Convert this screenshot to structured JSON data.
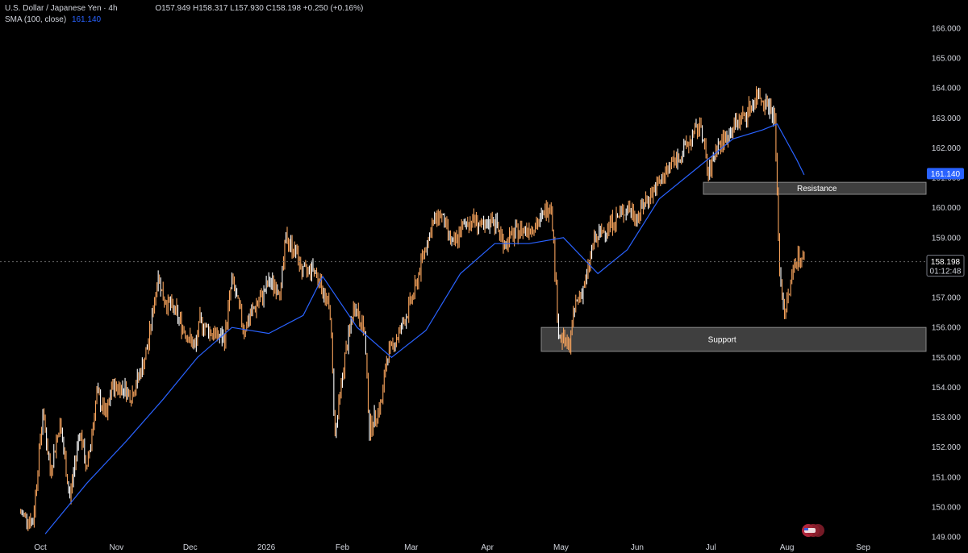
{
  "header": {
    "symbol": "U.S. Dollar / Japanese Yen · 4h",
    "ohlc": "O157.949 H158.317 L157.930 C158.198 +0.250 (+0.16%)",
    "indicator": "SMA (100, close)",
    "indicator_value": "161.140"
  },
  "colors": {
    "background": "#000000",
    "candle": "#f7a35c",
    "candle_highlight": "#ffffff",
    "sma": "#2962ff",
    "zone_fill": "#4a4a4a",
    "crosshair": "#666666"
  },
  "chart_data": {
    "type": "line",
    "y_axis": {
      "min": 149,
      "max": 166,
      "ticks": [
        149,
        150,
        151,
        152,
        153,
        154,
        155,
        156,
        157,
        158,
        159,
        160,
        161,
        162,
        163,
        164,
        165,
        166
      ],
      "tick_labels": [
        "149.000",
        "150.000",
        "151.000",
        "152.000",
        "153.000",
        "154.000",
        "155.000",
        "156.000",
        "157.000",
        "158.000",
        "159.000",
        "160.000",
        "161.000",
        "162.000",
        "163.000",
        "164.000",
        "165.000",
        "166.000"
      ]
    },
    "x_axis": {
      "labels": [
        "Oct",
        "Nov",
        "Dec",
        "2026",
        "Feb",
        "Mar",
        "Apr",
        "May",
        "Jun",
        "Jul",
        "Aug",
        "Sep"
      ]
    },
    "series": [
      {
        "name": "U.S. Dollar / Japanese Yen · 4h",
        "kind": "price",
        "x": [
          "2025-09-23",
          "2025-09-28",
          "2025-10-02",
          "2025-10-05",
          "2025-10-09",
          "2025-10-13",
          "2025-10-17",
          "2025-10-20",
          "2025-10-24",
          "2025-10-28",
          "2025-10-30",
          "2025-11-04",
          "2025-11-07",
          "2025-11-12",
          "2025-11-14",
          "2025-11-18",
          "2025-11-20",
          "2025-11-25",
          "2025-11-28",
          "2025-12-03",
          "2025-12-05",
          "2025-12-10",
          "2025-12-15",
          "2025-12-18",
          "2025-12-23",
          "2025-12-26",
          "2025-12-30",
          "2026-01-02",
          "2026-01-07",
          "2026-01-09",
          "2026-01-13",
          "2026-01-16",
          "2026-01-20",
          "2026-01-23",
          "2026-01-27",
          "2026-01-29",
          "2026-02-02",
          "2026-02-06",
          "2026-02-10",
          "2026-02-12",
          "2026-02-17",
          "2026-02-19",
          "2026-02-24",
          "2026-02-27",
          "2026-03-03",
          "2026-03-06",
          "2026-03-10",
          "2026-03-13",
          "2026-03-18",
          "2026-03-23",
          "2026-03-27",
          "2026-03-31",
          "2026-04-03",
          "2026-04-08",
          "2026-04-13",
          "2026-04-17",
          "2026-04-22",
          "2026-04-27",
          "2026-04-30",
          "2026-05-04",
          "2026-05-07",
          "2026-05-11",
          "2026-05-14",
          "2026-05-19",
          "2026-05-23",
          "2026-05-28",
          "2026-06-01",
          "2026-06-05",
          "2026-06-10",
          "2026-06-15",
          "2026-06-19",
          "2026-06-23",
          "2026-06-27",
          "2026-06-30",
          "2026-07-03",
          "2026-07-07",
          "2026-07-11",
          "2026-07-16",
          "2026-07-20",
          "2026-07-24",
          "2026-07-27",
          "2026-07-29",
          "2026-07-31",
          "2026-08-02",
          "2026-08-04",
          "2026-08-06",
          "2026-08-08"
        ],
        "values": [
          149.8,
          149.5,
          153.2,
          151.2,
          152.8,
          150.3,
          152.6,
          151.2,
          153.8,
          153.0,
          154.0,
          154.0,
          153.7,
          154.8,
          155.5,
          157.8,
          157.0,
          156.5,
          156.0,
          155.3,
          156.2,
          155.8,
          155.6,
          157.6,
          155.9,
          156.5,
          157.0,
          157.5,
          157.3,
          159.0,
          158.5,
          157.8,
          158.0,
          157.5,
          156.5,
          152.4,
          155.0,
          156.8,
          155.8,
          152.6,
          153.5,
          155.0,
          155.8,
          156.4,
          157.4,
          158.5,
          159.5,
          159.8,
          158.7,
          159.5,
          159.6,
          159.2,
          159.7,
          158.8,
          159.2,
          159.3,
          159.5,
          160.2,
          155.8,
          155.3,
          156.8,
          157.5,
          158.8,
          159.3,
          159.6,
          160.0,
          159.7,
          160.3,
          160.8,
          161.5,
          161.8,
          162.3,
          162.8,
          161.0,
          162.0,
          162.3,
          162.8,
          163.2,
          163.8,
          163.5,
          163.0,
          157.8,
          156.5,
          157.2,
          158.2,
          158.4,
          158.2
        ]
      },
      {
        "name": "SMA (100, close)",
        "kind": "sma",
        "x": [
          "2025-10-03",
          "2025-10-20",
          "2025-11-05",
          "2025-11-20",
          "2025-12-04",
          "2025-12-18",
          "2026-01-02",
          "2026-01-16",
          "2026-01-24",
          "2026-02-07",
          "2026-02-21",
          "2026-03-07",
          "2026-03-21",
          "2026-04-04",
          "2026-04-18",
          "2026-05-02",
          "2026-05-16",
          "2026-05-28",
          "2026-06-10",
          "2026-06-25",
          "2026-07-10",
          "2026-07-22",
          "2026-07-28",
          "2026-08-01",
          "2026-08-05",
          "2026-08-08"
        ],
        "values": [
          149.1,
          150.8,
          152.2,
          153.6,
          155.0,
          156.0,
          155.8,
          156.4,
          157.7,
          156.0,
          155.0,
          155.9,
          157.8,
          158.8,
          158.8,
          159.0,
          157.8,
          158.6,
          160.3,
          161.3,
          162.3,
          162.6,
          162.8,
          162.2,
          161.6,
          161.1
        ]
      }
    ],
    "annotations": [
      {
        "label": "Resistance",
        "y_low": 160.45,
        "y_high": 160.85
      },
      {
        "label": "Support",
        "y_low": 155.2,
        "y_high": 156.0
      }
    ],
    "last_price": {
      "value": "158.198",
      "countdown": "01:12:48"
    },
    "sma_tag": "161.140",
    "grid": false,
    "legend": "top-left"
  }
}
